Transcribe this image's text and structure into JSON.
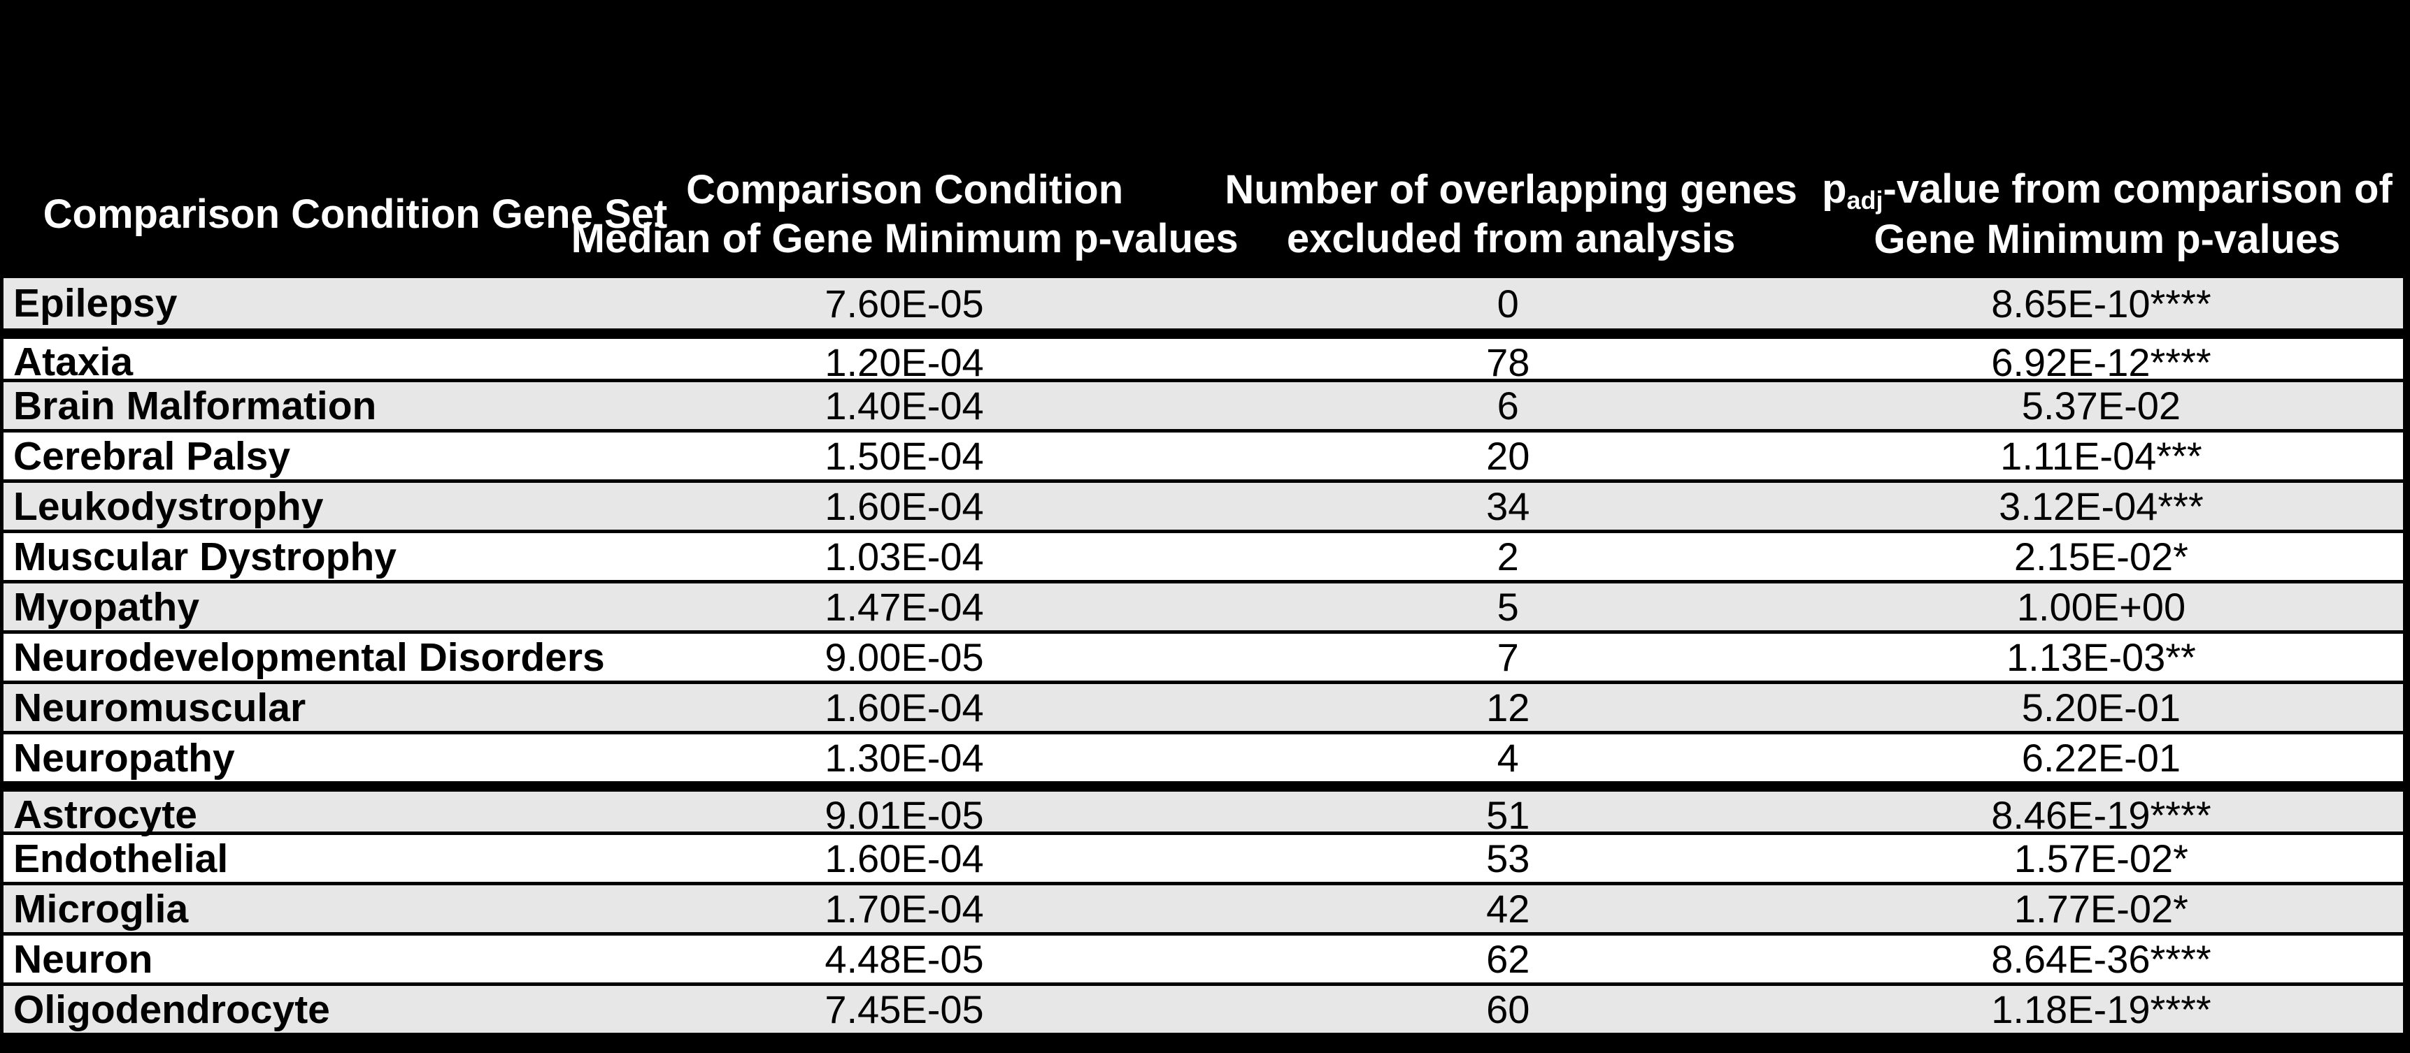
{
  "page": {
    "background": "#000000"
  },
  "table": {
    "header": {
      "col1": {
        "line1": "Comparison Condition Gene Set"
      },
      "col2": {
        "line1": "Comparison Condition",
        "line2": "Median of Gene Minimum p-values"
      },
      "col3": {
        "line1": "Number of overlapping genes",
        "line2": "excluded from analysis"
      },
      "col4": {
        "line1_pre": "p",
        "line1_sub": "adj",
        "line1_post": "-value from comparison of",
        "line2": "Gene Minimum p-values"
      }
    },
    "rows": [
      {
        "gene_set": "Epilepsy",
        "median_p": "7.60E-05",
        "overlapping_genes": "0",
        "p_adj": "8.65E-10****"
      },
      {
        "gene_set": "Ataxia",
        "median_p": "1.20E-04",
        "overlapping_genes": "78",
        "p_adj": "6.92E-12****"
      },
      {
        "gene_set": "Brain Malformation",
        "median_p": "1.40E-04",
        "overlapping_genes": "6",
        "p_adj": "5.37E-02"
      },
      {
        "gene_set": "Cerebral Palsy",
        "median_p": "1.50E-04",
        "overlapping_genes": "20",
        "p_adj": "1.11E-04***"
      },
      {
        "gene_set": "Leukodystrophy",
        "median_p": "1.60E-04",
        "overlapping_genes": "34",
        "p_adj": "3.12E-04***"
      },
      {
        "gene_set": "Muscular Dystrophy",
        "median_p": "1.03E-04",
        "overlapping_genes": "2",
        "p_adj": "2.15E-02*"
      },
      {
        "gene_set": "Myopathy",
        "median_p": "1.47E-04",
        "overlapping_genes": "5",
        "p_adj": "1.00E+00"
      },
      {
        "gene_set": "Neurodevelopmental Disorders",
        "median_p": "9.00E-05",
        "overlapping_genes": "7",
        "p_adj": "1.13E-03**"
      },
      {
        "gene_set": "Neuromuscular",
        "median_p": "1.60E-04",
        "overlapping_genes": "12",
        "p_adj": "5.20E-01"
      },
      {
        "gene_set": "Neuropathy",
        "median_p": "1.30E-04",
        "overlapping_genes": "4",
        "p_adj": "6.22E-01"
      },
      {
        "gene_set": "Astrocyte",
        "median_p": "9.01E-05",
        "overlapping_genes": "51",
        "p_adj": "8.46E-19****"
      },
      {
        "gene_set": "Endothelial",
        "median_p": "1.60E-04",
        "overlapping_genes": "53",
        "p_adj": "1.57E-02*"
      },
      {
        "gene_set": "Microglia",
        "median_p": "1.70E-04",
        "overlapping_genes": "42",
        "p_adj": "1.77E-02*"
      },
      {
        "gene_set": "Neuron",
        "median_p": "4.48E-05",
        "overlapping_genes": "62",
        "p_adj": "8.64E-36****"
      },
      {
        "gene_set": "Oligodendrocyte",
        "median_p": "7.45E-05",
        "overlapping_genes": "60",
        "p_adj": "1.18E-19****"
      }
    ],
    "thick_separator_before_rows": [
      1,
      10
    ],
    "colors": {
      "stripe": "#E7E7E7",
      "row": "#FFFFFF",
      "border": "#000000",
      "header_bg": "#000000",
      "header_text": "#FFFFFF",
      "body_text": "#000000"
    }
  }
}
